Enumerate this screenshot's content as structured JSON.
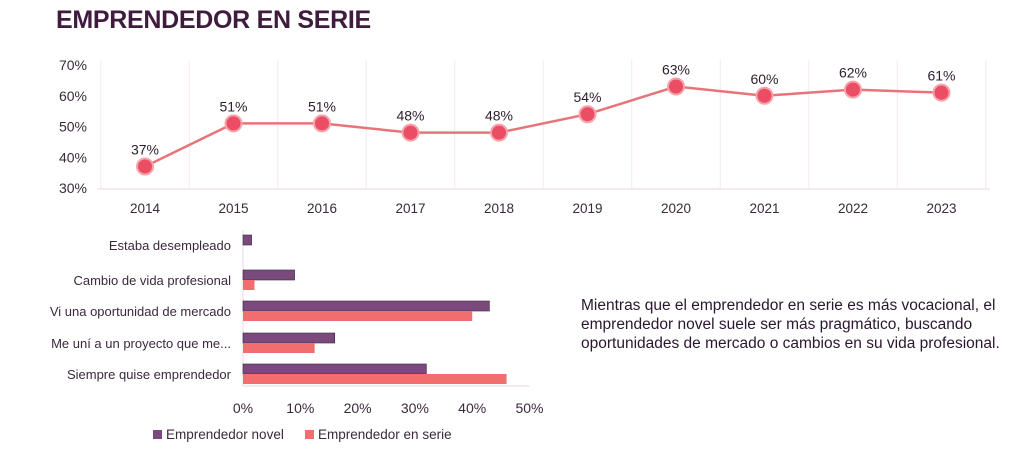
{
  "page": {
    "title": "EMPRENDEDOR EN SERIE",
    "note": "Mientras que el emprendedor en serie es más vocacional, el emprendedor novel suele ser más pragmático, buscando oportunidades de mercado o cambios en su vida profesional."
  },
  "colors": {
    "title": "#3f1b3e",
    "line": "#e8747a",
    "marker": "#ea4d64",
    "novel": "#7a4a7d",
    "serie": "#f26d6e",
    "axis": "#e7d5e6"
  },
  "chart_data": [
    {
      "type": "line",
      "title": "",
      "xlabel": "",
      "ylabel": "",
      "categories": [
        "2014",
        "2015",
        "2016",
        "2017",
        "2018",
        "2019",
        "2020",
        "2021",
        "2022",
        "2023"
      ],
      "values": [
        37,
        51,
        51,
        48,
        48,
        54,
        63,
        60,
        62,
        61
      ],
      "data_labels": [
        "37%",
        "51%",
        "51%",
        "48%",
        "48%",
        "54%",
        "63%",
        "60%",
        "62%",
        "61%"
      ],
      "y_ticks": [
        "70%",
        "60%",
        "50%",
        "40%",
        "30%"
      ],
      "ylim": [
        30,
        70
      ],
      "grid": false
    },
    {
      "type": "bar",
      "orientation": "horizontal",
      "categories": [
        "Estaba desempleado",
        "Cambio de vida profesional",
        "Vi una oportunidad de mercado",
        "Me uní a un proyecto que me...",
        "Siempre quise emprendedor"
      ],
      "series": [
        {
          "name": "Emprendedor novel",
          "values": [
            1.5,
            9,
            43,
            16,
            32
          ]
        },
        {
          "name": "Emprendedor en serie",
          "values": [
            0,
            2,
            40,
            12.5,
            46
          ]
        }
      ],
      "x_ticks": [
        "0%",
        "10%",
        "20%",
        "30%",
        "40%",
        "50%"
      ],
      "xlim": [
        0,
        50
      ],
      "legend": "bottom-left",
      "grid": false
    }
  ]
}
